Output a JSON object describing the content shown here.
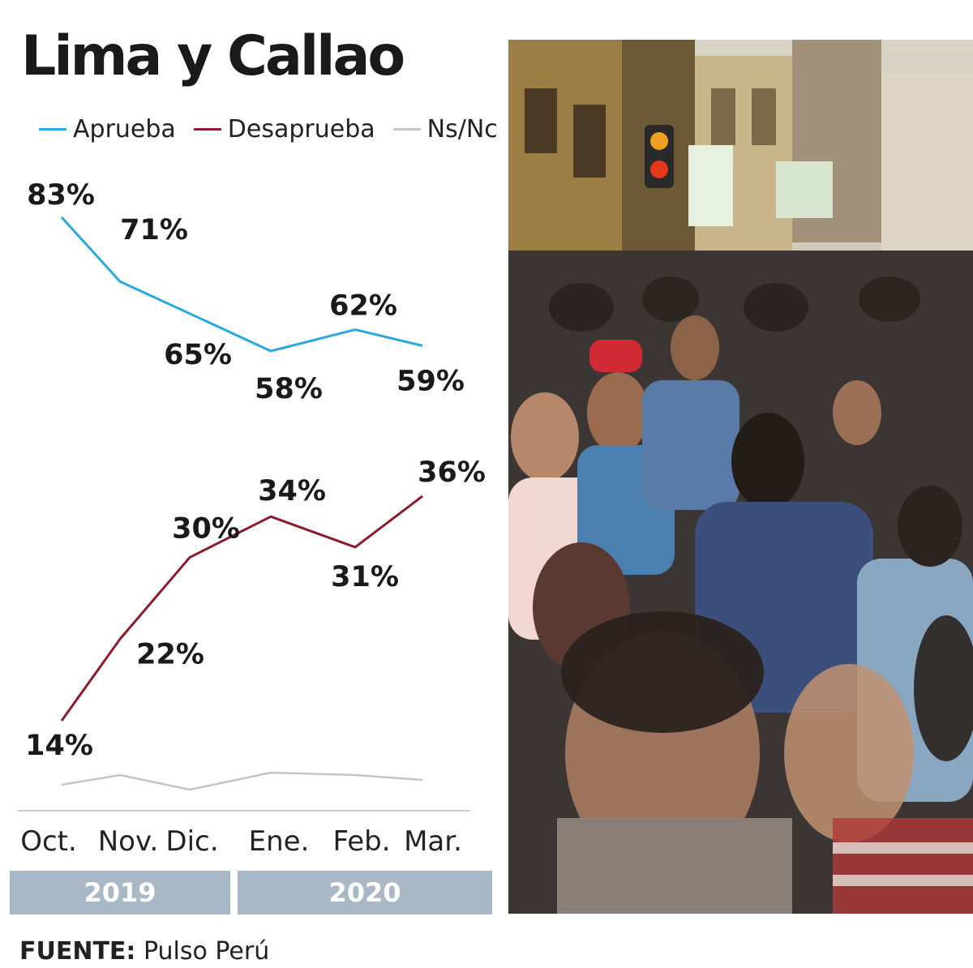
{
  "header": {
    "title": "Lima y Callao"
  },
  "legend": [
    {
      "label": "Aprueba",
      "color": "#2aa8e0"
    },
    {
      "label": "Desaprueba",
      "color": "#8c1c2c"
    },
    {
      "label": "Ns/Nc",
      "color": "#c4c4c4"
    }
  ],
  "chart_data": {
    "type": "line",
    "x": [
      "Oct.",
      "Nov.",
      "Dic.",
      "Ene.",
      "Feb.",
      "Mar."
    ],
    "series": [
      {
        "name": "Aprueba",
        "color": "#2aa8e0",
        "values": [
          83,
          71,
          65,
          58,
          62,
          59
        ],
        "labels": [
          "83%",
          "71%",
          "65%",
          "58%",
          "62%",
          "59%"
        ]
      },
      {
        "name": "Desaprueba",
        "color": "#8c1c2c",
        "values": [
          14,
          22,
          30,
          34,
          31,
          36
        ],
        "labels": [
          "14%",
          "22%",
          "30%",
          "34%",
          "31%",
          "36%"
        ]
      },
      {
        "name": "Ns/Nc",
        "color": "#c4c4c4",
        "values": [
          3,
          7,
          1,
          8,
          7,
          5
        ]
      }
    ],
    "year_groups": [
      {
        "label": "2019"
      },
      {
        "label": "2020"
      }
    ],
    "grid": false
  },
  "footer": {
    "source_label": "FUENTE:",
    "source_value": "Pulso Perú"
  },
  "photo": {
    "icon": "crowd-street-photo"
  }
}
